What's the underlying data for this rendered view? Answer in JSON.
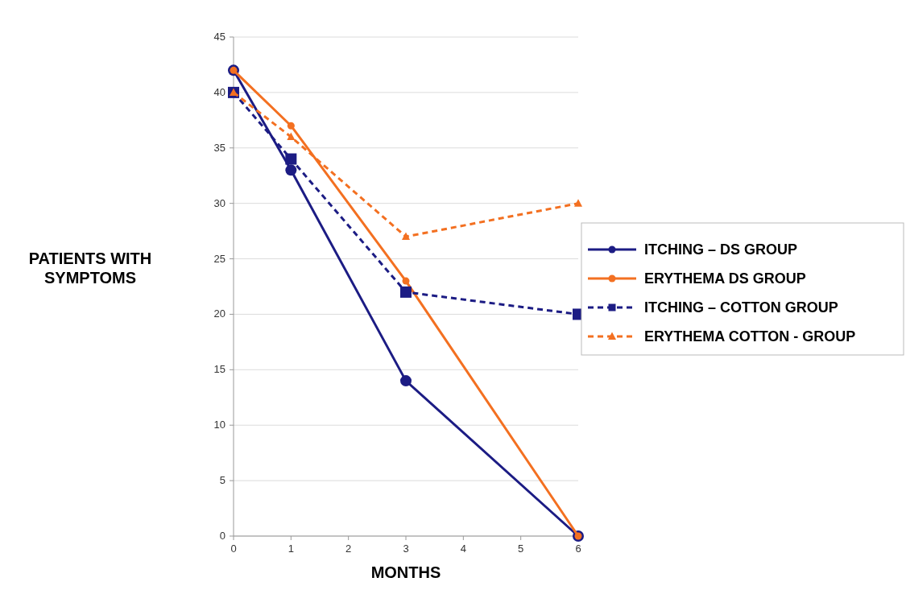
{
  "chart_data": {
    "type": "line",
    "xlabel": "MONTHS",
    "ylabel": "PATIENTS WITH SYMPTOMS",
    "x": [
      0,
      1,
      3,
      6
    ],
    "xlim": [
      0,
      6
    ],
    "xticks": [
      0,
      1,
      2,
      3,
      4,
      5,
      6
    ],
    "ylim": [
      0,
      45
    ],
    "yticks": [
      0,
      5,
      10,
      15,
      20,
      25,
      30,
      35,
      40,
      45
    ],
    "grid": "y",
    "legend": "right",
    "series": [
      {
        "name": "ITCHING – DS GROUP",
        "color": "#1c1c84",
        "values": [
          42,
          33,
          14,
          0
        ],
        "marker": "circle",
        "line_style": "solid"
      },
      {
        "name": "ERYTHEMA DS GROUP",
        "color": "#f37021",
        "values": [
          42,
          37,
          23,
          0
        ],
        "marker": "circle",
        "line_style": "solid"
      },
      {
        "name": "ITCHING – COTTON GROUP",
        "color": "#1c1c84",
        "values": [
          40,
          34,
          22,
          20
        ],
        "marker": "square",
        "line_style": "dashed"
      },
      {
        "name": "ERYTHEMA COTTON - GROUP",
        "color": "#f37021",
        "values": [
          40,
          36,
          27,
          30
        ],
        "marker": "triangle",
        "line_style": "dashed"
      }
    ]
  }
}
